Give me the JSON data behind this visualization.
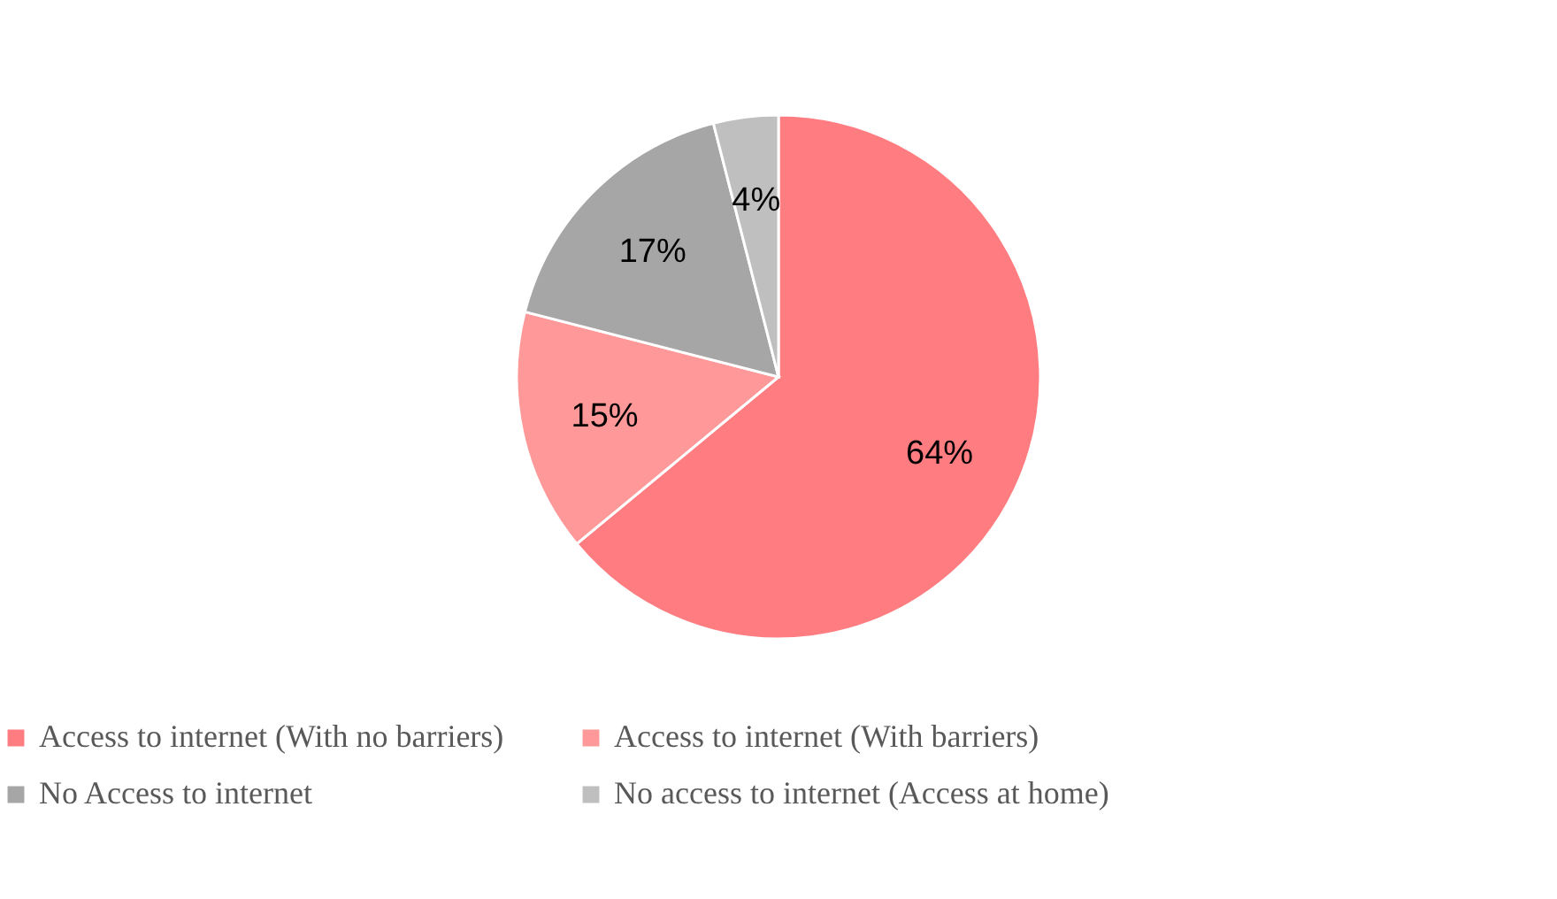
{
  "chart_data": {
    "type": "pie",
    "categories": [
      "Access to internet (With no barriers)",
      "Access to internet (With barriers)",
      "No Access to internet",
      "No access to internet (Access at home)"
    ],
    "values": [
      64,
      15,
      17,
      4
    ],
    "colors": [
      "#ff7c80",
      "#ff9999",
      "#a6a6a6",
      "#bfbfbf"
    ],
    "value_labels": [
      "64%",
      "15%",
      "17%",
      "4%"
    ],
    "legend": "bottom"
  }
}
